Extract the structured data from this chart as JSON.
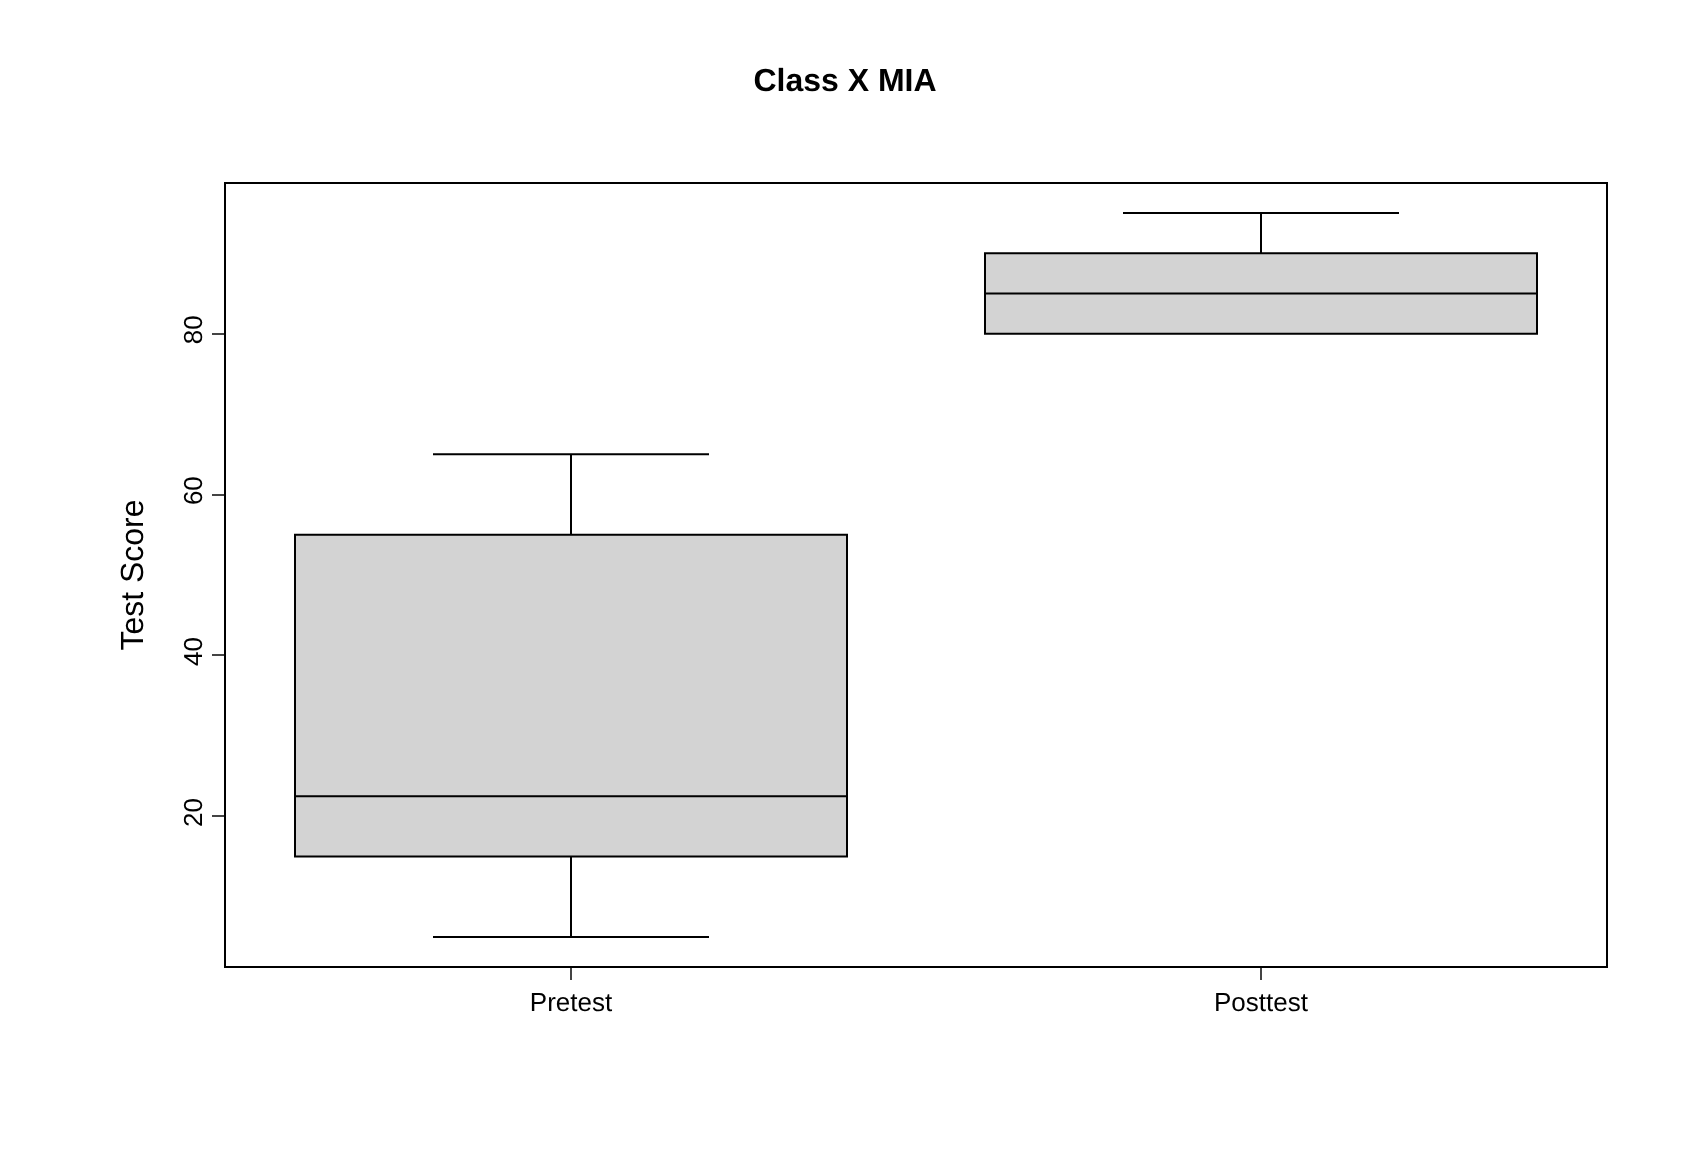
{
  "chart_data": {
    "type": "box",
    "title": "Class X MIA",
    "ylabel": "Test Score",
    "categories": [
      "Pretest",
      "Posttest"
    ],
    "boxes": [
      {
        "low": 5,
        "q1": 15,
        "median": 22.5,
        "q3": 55,
        "high": 65
      },
      {
        "low": 80,
        "q1": 80,
        "median": 85,
        "q3": 90,
        "high": 95
      }
    ],
    "color": "#d3d3d3",
    "ylim": [
      1.4,
      98.6
    ],
    "yticks": [
      20,
      40,
      60,
      80
    ]
  }
}
